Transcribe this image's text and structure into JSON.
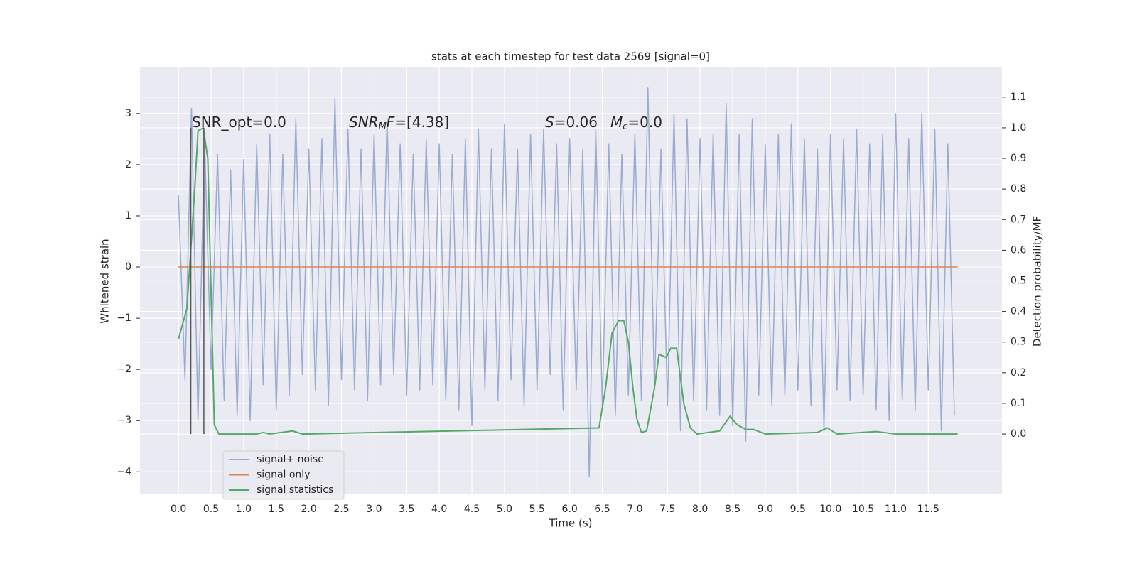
{
  "chart_data": {
    "type": "line",
    "title": "stats at each timestep for test data 2569 [signal=0]",
    "xlabel": "Time (s)",
    "ylabel": "Whitened strain",
    "y2label": "Detection probability/MF",
    "xlim": [
      -0.59,
      12.63
    ],
    "ylim": [
      -4.44,
      3.9
    ],
    "y2lim": [
      -0.197,
      1.197
    ],
    "xticks": [
      {
        "value": 0,
        "label": "0.0"
      },
      0.5,
      {
        "value": 1,
        "label": "1.0"
      },
      1.5,
      {
        "value": 2,
        "label": "2.0"
      },
      2.5,
      {
        "value": 3,
        "label": "3.0"
      },
      3.5,
      {
        "value": 4,
        "label": "4.0"
      },
      4.5,
      {
        "value": 5,
        "label": "5.0"
      },
      5.5,
      {
        "value": 6,
        "label": "6.0"
      },
      6.5,
      {
        "value": 7,
        "label": "7.0"
      },
      7.5,
      {
        "value": 8,
        "label": "8.0"
      },
      8.5,
      {
        "value": 9,
        "label": "9.0"
      },
      9.5,
      {
        "value": 10,
        "label": "10.0"
      },
      10.5,
      {
        "value": 11,
        "label": "11.0"
      },
      11.5
    ],
    "yticks": [
      {
        "value": -4,
        "label": "−4"
      },
      {
        "value": -3,
        "label": "−3"
      },
      {
        "value": -2,
        "label": "−2"
      },
      {
        "value": -1,
        "label": "−1"
      },
      0,
      1,
      2,
      3
    ],
    "y2ticks": [
      {
        "value": 0,
        "label": "0.0"
      },
      0.1,
      0.2,
      0.3,
      0.4,
      0.5,
      0.6,
      0.7,
      0.8,
      0.9,
      {
        "value": 1,
        "label": "1.0"
      },
      1.1
    ],
    "grid": true,
    "legend": "lower left",
    "annotations": [
      [
        {
          "text": "SNR_opt=0.0"
        }
      ],
      [
        {
          "text": "SNR",
          "style": "italic"
        },
        {
          "text": "M",
          "style": "italic-sub"
        },
        {
          "text": "F",
          "style": "italic"
        },
        {
          "text": "=[4.38]"
        }
      ],
      [
        {
          "text": "S",
          "style": "italic"
        },
        {
          "text": "=0.06"
        }
      ],
      [
        {
          "text": "M",
          "style": "italic"
        },
        {
          "text": "c",
          "style": "italic-sub"
        },
        {
          "text": "=0.0"
        }
      ]
    ],
    "vlines": {
      "x": [
        0.19,
        0.39
      ],
      "y2": [
        0,
        1
      ],
      "color": "#555555"
    },
    "series": [
      {
        "name": "signal+ noise",
        "color": "#9aabd1",
        "x": [
          0,
          0.1,
          0.2,
          0.3,
          0.4,
          0.5,
          0.6,
          0.7,
          0.8,
          0.9,
          1,
          1.1,
          1.2,
          1.3,
          1.4,
          1.5,
          1.6,
          1.7,
          1.8,
          1.9,
          2,
          2.1,
          2.2,
          2.3,
          2.4,
          2.5,
          2.6,
          2.7,
          2.8,
          2.9,
          3,
          3.1,
          3.2,
          3.3,
          3.4,
          3.5,
          3.6,
          3.7,
          3.8,
          3.9,
          4,
          4.1,
          4.2,
          4.3,
          4.4,
          4.5,
          4.6,
          4.7,
          4.8,
          4.9,
          5,
          5.1,
          5.2,
          5.3,
          5.4,
          5.5,
          5.6,
          5.7,
          5.8,
          5.9,
          6,
          6.1,
          6.2,
          6.3,
          6.4,
          6.5,
          6.6,
          6.7,
          6.8,
          6.9,
          7,
          7.1,
          7.2,
          7.3,
          7.4,
          7.5,
          7.6,
          7.7,
          7.8,
          7.9,
          8,
          8.1,
          8.2,
          8.3,
          8.4,
          8.5,
          8.6,
          8.7,
          8.8,
          8.9,
          9,
          9.1,
          9.2,
          9.3,
          9.4,
          9.5,
          9.6,
          9.7,
          9.8,
          9.9,
          10,
          10.1,
          10.2,
          10.3,
          10.4,
          10.5,
          10.6,
          10.7,
          10.8,
          10.9,
          11,
          11.1,
          11.2,
          11.3,
          11.4,
          11.5,
          11.6,
          11.7,
          11.8,
          11.9
        ],
        "values": [
          1.4,
          -2.2,
          3.1,
          -3.0,
          2.5,
          -2.0,
          2.2,
          -2.6,
          1.9,
          -2.9,
          2.1,
          -3.0,
          2.4,
          -2.3,
          2.6,
          -2.8,
          2.2,
          -2.5,
          2.9,
          -2.1,
          2.3,
          -2.4,
          2.5,
          -2.7,
          3.3,
          -2.2,
          2.7,
          -2.4,
          2.3,
          -2.6,
          2.6,
          -2.3,
          2.9,
          -2.1,
          2.4,
          -2.5,
          2.2,
          -2.4,
          2.5,
          -2.3,
          2.4,
          -2.6,
          2.2,
          -2.8,
          2.5,
          -3.1,
          2.7,
          -2.4,
          2.3,
          -2.6,
          2.8,
          -2.2,
          2.3,
          -2.7,
          2.6,
          -2.4,
          2.7,
          -2.1,
          2.4,
          -2.8,
          2.5,
          -2.4,
          2.3,
          -4.1,
          2.7,
          -2.7,
          2.4,
          -2.9,
          2.2,
          -2.5,
          2.6,
          -2.6,
          3.5,
          -2.4,
          2.3,
          -2.7,
          3.0,
          -3.2,
          2.9,
          -2.6,
          2.5,
          -2.8,
          2.6,
          -2.9,
          3.2,
          -3.1,
          2.6,
          -3.4,
          2.9,
          -2.5,
          2.4,
          -2.7,
          2.6,
          -2.5,
          2.8,
          -2.4,
          2.5,
          -2.7,
          2.3,
          -3.2,
          2.6,
          -2.4,
          2.5,
          -2.6,
          2.7,
          -2.5,
          2.4,
          -2.8,
          2.6,
          -3.0,
          3.0,
          -2.6,
          2.5,
          -2.8,
          3.0,
          -2.4,
          2.7,
          -3.2,
          2.4,
          -2.9
        ]
      },
      {
        "name": "signal only",
        "color": "#dd8452",
        "x": [
          0,
          11.95
        ],
        "values": [
          0,
          0
        ]
      },
      {
        "name": "signal statistics",
        "color": "#55a868",
        "axis": "y2",
        "x": [
          0,
          0.13,
          0.25,
          0.3,
          0.38,
          0.45,
          0.55,
          0.62,
          1.2,
          1.3,
          1.4,
          1.75,
          1.9,
          6.45,
          6.55,
          6.65,
          6.75,
          6.83,
          6.9,
          6.97,
          7.03,
          7.1,
          7.18,
          7.3,
          7.37,
          7.48,
          7.55,
          7.64,
          7.75,
          7.85,
          7.95,
          8.3,
          8.46,
          8.57,
          8.7,
          8.82,
          9.0,
          9.8,
          9.95,
          10.1,
          10.7,
          11.0,
          11.95
        ],
        "values": [
          0.31,
          0.41,
          0.8,
          0.99,
          1.0,
          0.9,
          0.03,
          0.0,
          0.0,
          0.005,
          0.0,
          0.01,
          0.0,
          0.02,
          0.15,
          0.33,
          0.37,
          0.37,
          0.3,
          0.15,
          0.05,
          0.005,
          0.01,
          0.15,
          0.26,
          0.25,
          0.28,
          0.28,
          0.1,
          0.02,
          0.0,
          0.01,
          0.058,
          0.03,
          0.015,
          0.015,
          0.0,
          0.005,
          0.02,
          0.0,
          0.008,
          0.0,
          0.0
        ]
      }
    ]
  }
}
